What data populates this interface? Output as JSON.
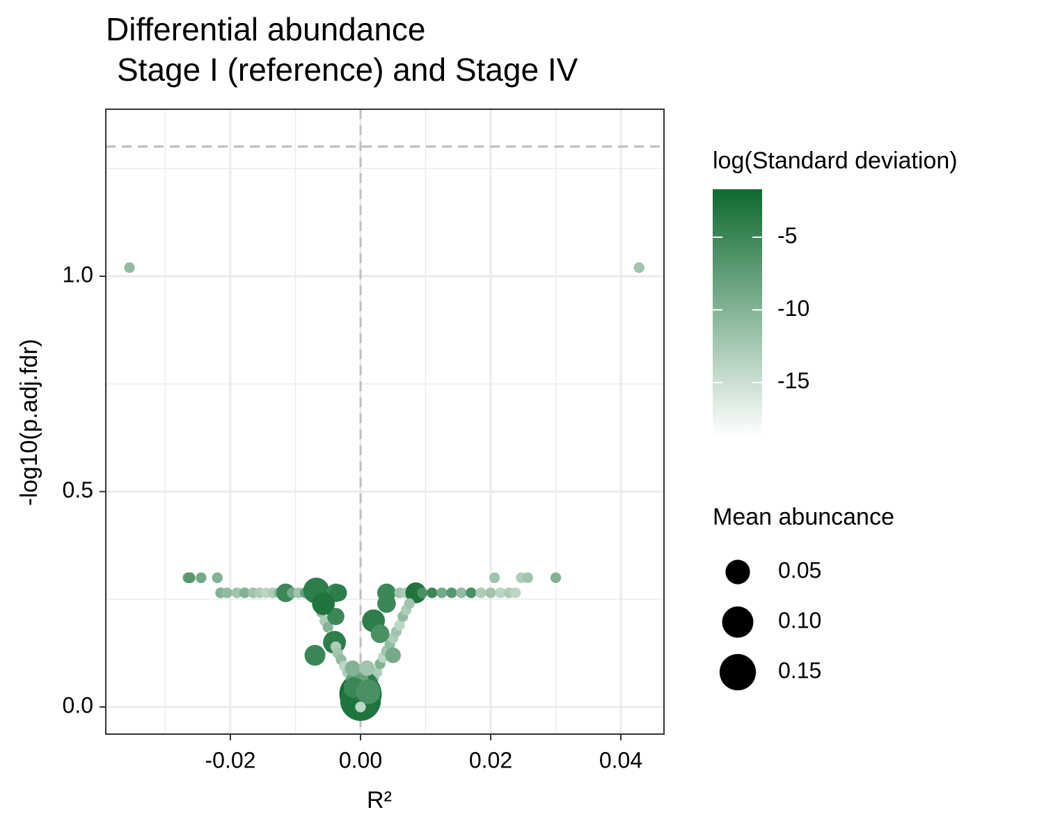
{
  "chart_data": {
    "type": "scatter",
    "title": [
      "Differential abundance",
      "Stage I (reference) and Stage IV"
    ],
    "x_label": "R²",
    "y_label": "-log10(p.adj.fdr)",
    "xlim": [
      -0.03914,
      0.04663
    ],
    "ylim": [
      -0.063,
      1.3877
    ],
    "xticks": [
      -0.02,
      {
        "value": 0,
        "label": "0.00"
      },
      0.02,
      0.04
    ],
    "yticks": [
      {
        "value": 0,
        "label": "0.0"
      },
      0.5,
      {
        "value": 1,
        "label": "1.0"
      }
    ],
    "x_minor_grid": [
      -0.03,
      -0.01,
      0.01,
      0.03
    ],
    "y_minor_grid": [
      0.25,
      0.75,
      1.25
    ],
    "grid": true,
    "hline": 1.301,
    "vline": 0,
    "color_legend": {
      "title": "log(Standard deviation)",
      "lim": [
        -18.7,
        -1.7
      ],
      "colors": [
        "#ffffff",
        "#0d6a2f"
      ],
      "ticks": [
        -5,
        -10,
        -15
      ]
    },
    "size_legend": {
      "title": "Mean abuncance",
      "values": [
        0.05,
        {
          "value": 0.1,
          "label": "0.10"
        },
        0.15
      ],
      "color": "#000000"
    },
    "x": [
      -0.0355,
      0.0428,
      -0.0265,
      -0.0262,
      -0.0245,
      -0.022,
      0.0206,
      0.0247,
      0.0257,
      0.03,
      -0.0215,
      -0.0205,
      -0.019,
      -0.0178,
      -0.0165,
      -0.0155,
      -0.0145,
      -0.0135,
      -0.0125,
      -0.0115,
      -0.0105,
      -0.0095,
      -0.0085,
      -0.0068,
      -0.0038,
      0.004,
      0.006,
      0.007,
      0.0085,
      0.0095,
      0.011,
      0.0125,
      0.014,
      0.0155,
      0.017,
      0.0185,
      0.02,
      0.0215,
      0.0228,
      0.0238,
      -0.0065,
      -0.006,
      -0.0055,
      -0.005,
      -0.0045,
      -0.004,
      -0.0038,
      -0.0035,
      -0.007,
      -0.003,
      -0.0025,
      -0.002,
      -0.0015,
      -0.0038,
      -0.0034,
      -0.0057,
      0.0015,
      0.002,
      0.0025,
      0.003,
      0.0035,
      0.004,
      0.0045,
      0.005,
      0.0055,
      0.006,
      0.0065,
      0.007,
      0.0075,
      0.002,
      0.004,
      0.003,
      0.005,
      0,
      0,
      0.0005,
      -0.0005,
      -0.0012,
      0.001,
      -0.001,
      0.0012,
      0
    ],
    "y": [
      1.02,
      1.02,
      0.3,
      0.3,
      0.3,
      0.3,
      0.3,
      0.3,
      0.3,
      0.3,
      0.265,
      0.265,
      0.265,
      0.265,
      0.265,
      0.265,
      0.265,
      0.265,
      0.265,
      0.265,
      0.265,
      0.265,
      0.265,
      0.27,
      0.265,
      0.265,
      0.265,
      0.265,
      0.265,
      0.265,
      0.265,
      0.265,
      0.265,
      0.265,
      0.265,
      0.265,
      0.265,
      0.265,
      0.265,
      0.265,
      0.24,
      0.22,
      0.2,
      0.185,
      0.165,
      0.15,
      0.14,
      0.125,
      0.12,
      0.11,
      0.095,
      0.08,
      0.065,
      0.21,
      0.265,
      0.24,
      0.05,
      0.065,
      0.08,
      0.1,
      0.115,
      0.13,
      0.145,
      0.16,
      0.175,
      0.19,
      0.21,
      0.225,
      0.24,
      0.2,
      0.24,
      0.17,
      0.12,
      0.03,
      0.015,
      0.05,
      0.06,
      0.09,
      0.09,
      0.045,
      0.035,
      0
    ],
    "log_sd": [
      -11,
      -12,
      -8,
      -7,
      -9,
      -10,
      -12,
      -13,
      -12,
      -10,
      -10,
      -11,
      -12,
      -10,
      -12,
      -13,
      -14,
      -13,
      -10,
      -5,
      -9,
      -12,
      -8,
      -4,
      -5,
      -5,
      -12,
      -13,
      -3,
      -6,
      -5,
      -9,
      -7,
      -11,
      -6,
      -13,
      -12,
      -14,
      -13,
      -14,
      -12,
      -11,
      -13,
      -10,
      -14,
      -4,
      -13,
      -12,
      -5,
      -11,
      -14,
      -13,
      -12,
      -5,
      -4,
      -3,
      -12,
      -11,
      -13,
      -10,
      -14,
      -12,
      -11,
      -13,
      -12,
      -14,
      -11,
      -13,
      -12,
      -4,
      -5,
      -6,
      -9,
      -2,
      -3,
      -4,
      -8,
      -10,
      -12,
      -5,
      -6,
      -14
    ],
    "mean": [
      0.001,
      0.001,
      0.001,
      0.001,
      0.001,
      0.001,
      0.001,
      0.001,
      0.001,
      0.001,
      0.001,
      0.001,
      0.001,
      0.001,
      0.001,
      0.001,
      0.001,
      0.001,
      0.001,
      0.02,
      0.001,
      0.001,
      0.001,
      0.06,
      0.02,
      0.02,
      0.001,
      0.001,
      0.03,
      0.001,
      0.001,
      0.001,
      0.001,
      0.001,
      0.001,
      0.001,
      0.001,
      0.001,
      0.001,
      0.001,
      0.001,
      0.001,
      0.001,
      0.001,
      0.001,
      0.04,
      0.001,
      0.001,
      0.03,
      0.001,
      0.001,
      0.001,
      0.001,
      0.015,
      0.015,
      0.04,
      0.001,
      0.001,
      0.001,
      0.001,
      0.001,
      0.001,
      0.001,
      0.001,
      0.001,
      0.001,
      0.001,
      0.001,
      0.001,
      0.04,
      0.02,
      0.02,
      0.01,
      0.22,
      0.2,
      0.08,
      0.04,
      0.01,
      0.01,
      0.03,
      0.05,
      0.001
    ]
  }
}
